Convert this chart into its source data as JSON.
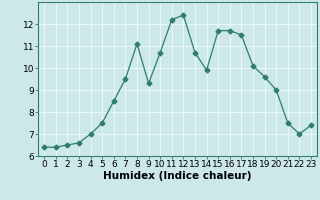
{
  "x": [
    0,
    1,
    2,
    3,
    4,
    5,
    6,
    7,
    8,
    9,
    10,
    11,
    12,
    13,
    14,
    15,
    16,
    17,
    18,
    19,
    20,
    21,
    22,
    23
  ],
  "y": [
    6.4,
    6.4,
    6.5,
    6.6,
    7.0,
    7.5,
    8.5,
    9.5,
    11.1,
    9.3,
    10.7,
    12.2,
    12.4,
    10.7,
    9.9,
    11.7,
    11.7,
    11.5,
    10.1,
    9.6,
    9.0,
    7.5,
    7.0,
    7.4
  ],
  "xlabel": "Humidex (Indice chaleur)",
  "ylim": [
    6,
    13
  ],
  "xlim": [
    -0.5,
    23.5
  ],
  "yticks": [
    6,
    7,
    8,
    9,
    10,
    11,
    12
  ],
  "xticks": [
    0,
    1,
    2,
    3,
    4,
    5,
    6,
    7,
    8,
    9,
    10,
    11,
    12,
    13,
    14,
    15,
    16,
    17,
    18,
    19,
    20,
    21,
    22,
    23
  ],
  "line_color": "#2e7d6e",
  "marker": "D",
  "marker_size": 2.5,
  "bg_color": "#cce8e8",
  "grid_color": "#e8f8f8",
  "tick_label_fontsize": 6.5,
  "xlabel_fontsize": 7.5
}
